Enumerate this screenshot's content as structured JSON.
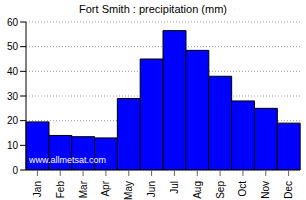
{
  "chart_data": {
    "type": "bar",
    "title": "Fort Smith : precipitation (mm)",
    "annotations": [
      "www.allmetsat.com"
    ],
    "categories": [
      "Jan",
      "Feb",
      "Mar",
      "Apr",
      "May",
      "Jun",
      "Jul",
      "Aug",
      "Sep",
      "Oct",
      "Nov",
      "Dec"
    ],
    "values": [
      19.5,
      14,
      13.5,
      13,
      29,
      45,
      56.5,
      48.5,
      38,
      28,
      25,
      19
    ],
    "color": "#0000ff",
    "ylim": [
      0,
      60
    ],
    "yticks": [
      0,
      10,
      20,
      30,
      40,
      50,
      60
    ],
    "grid": true
  }
}
